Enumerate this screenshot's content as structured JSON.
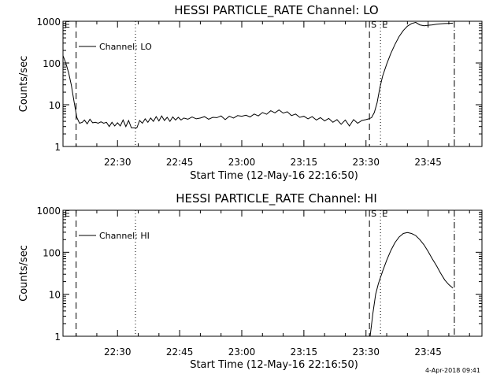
{
  "chart_data": [
    {
      "type": "line",
      "title": "HESSI PARTICLE_RATE Channel: LO",
      "xlabel": "Start Time (12-May-16 22:16:50)",
      "ylabel": "Counts/sec",
      "yscale": "log",
      "ylim": [
        1,
        1000
      ],
      "xlim": [
        "22:16:50",
        "23:58:00"
      ],
      "x_ticks": [
        "22:30",
        "22:45",
        "23:00",
        "23:15",
        "23:30",
        "23:45"
      ],
      "y_ticks": [
        "1",
        "10",
        "100",
        "1000"
      ],
      "legend": {
        "label": "Channel: LO",
        "placement": "top-left"
      },
      "markers": [
        {
          "label": "E",
          "time": "22:16:50",
          "style": "long-dash"
        },
        {
          "label": "",
          "time": "22:20:00",
          "style": "dash"
        },
        {
          "label": "",
          "time": "22:34:20",
          "style": "dot"
        },
        {
          "label": "S",
          "time": "23:30:50",
          "style": "dash"
        },
        {
          "label": "E",
          "time": "23:33:30",
          "style": "dot"
        },
        {
          "label": "",
          "time": "23:51:20",
          "style": "dash-dot"
        }
      ],
      "series": [
        {
          "time": [
            "22:16:50",
            "22:17:30",
            "22:18:10",
            "22:18:50",
            "22:19:30",
            "22:20:10",
            "22:20:50",
            "22:21:30",
            "22:22:00",
            "22:22:40",
            "22:23:20",
            "22:24:00",
            "22:24:40",
            "22:25:20",
            "22:26:00",
            "22:26:40",
            "22:27:20",
            "22:28:00",
            "22:28:40",
            "22:29:20",
            "22:30:00",
            "22:30:40",
            "22:31:20",
            "22:32:00",
            "22:32:40",
            "22:33:20",
            "22:34:00",
            "22:34:40",
            "22:35:20",
            "22:36:00",
            "22:36:40",
            "22:37:20",
            "22:38:00",
            "22:38:40",
            "22:39:20",
            "22:40:00",
            "22:40:40",
            "22:41:20",
            "22:42:00",
            "22:42:40",
            "22:43:20",
            "22:44:00",
            "22:44:40",
            "22:45:20",
            "22:46:00",
            "22:47:00",
            "22:48:00",
            "22:49:00",
            "22:50:00",
            "22:51:00",
            "22:52:00",
            "22:53:00",
            "22:54:00",
            "22:55:00",
            "22:56:00",
            "22:57:00",
            "22:58:00",
            "22:59:00",
            "23:00:00",
            "23:01:00",
            "23:02:00",
            "23:03:00",
            "23:04:00",
            "23:05:00",
            "23:06:00",
            "23:07:00",
            "23:08:00",
            "23:09:00",
            "23:10:00",
            "23:11:00",
            "23:12:00",
            "23:13:00",
            "23:14:00",
            "23:15:00",
            "23:16:00",
            "23:17:00",
            "23:18:00",
            "23:19:00",
            "23:20:00",
            "23:21:00",
            "23:22:00",
            "23:23:00",
            "23:24:00",
            "23:25:00",
            "23:26:00",
            "23:27:00",
            "23:28:00",
            "23:29:00",
            "23:30:00",
            "23:30:40",
            "23:31:20",
            "23:32:00",
            "23:32:40",
            "23:33:20",
            "23:34:00",
            "23:35:00",
            "23:36:00",
            "23:37:00",
            "23:38:00",
            "23:39:00",
            "23:40:00",
            "23:41:00",
            "23:42:00",
            "23:43:00",
            "23:44:00",
            "23:45:00",
            "23:46:00",
            "23:47:00",
            "23:48:00",
            "23:49:00",
            "23:50:00",
            "23:51:00"
          ],
          "values": [
            150,
            100,
            60,
            30,
            12,
            5,
            3.6,
            3.8,
            4.3,
            3.5,
            4.5,
            3.7,
            3.8,
            3.6,
            3.9,
            3.6,
            3.8,
            3.0,
            3.8,
            3.1,
            3.7,
            3.1,
            4.3,
            3.0,
            4.2,
            2.8,
            2.8,
            2.8,
            4.2,
            3.6,
            4.6,
            3.8,
            4.8,
            4.0,
            5.2,
            4.1,
            5.4,
            4.2,
            5.0,
            4.0,
            5.1,
            4.3,
            5.0,
            4.3,
            4.8,
            4.5,
            5.1,
            4.6,
            4.8,
            5.2,
            4.5,
            5.0,
            4.9,
            5.4,
            4.4,
            5.3,
            4.8,
            5.5,
            5.3,
            5.6,
            5.1,
            6.0,
            5.4,
            6.5,
            5.9,
            7.2,
            6.4,
            7.5,
            6.3,
            6.8,
            5.5,
            6.0,
            5.0,
            5.3,
            4.6,
            5.2,
            4.3,
            4.9,
            4.1,
            4.7,
            3.8,
            4.4,
            3.4,
            4.3,
            3.1,
            4.4,
            3.6,
            4.2,
            4.4,
            4.6,
            4.9,
            6.5,
            11,
            25,
            48,
            95,
            170,
            280,
            430,
            600,
            760,
            880,
            940,
            820,
            780,
            800,
            820,
            850,
            870,
            880,
            890,
            900
          ]
        }
      ]
    },
    {
      "type": "line",
      "title": "HESSI PARTICLE_RATE Channel: HI",
      "xlabel": "Start Time (12-May-16 22:16:50)",
      "ylabel": "Counts/sec",
      "yscale": "log",
      "ylim": [
        1,
        1000
      ],
      "xlim": [
        "22:16:50",
        "23:58:00"
      ],
      "x_ticks": [
        "22:30",
        "22:45",
        "23:00",
        "23:15",
        "23:30",
        "23:45"
      ],
      "y_ticks": [
        "1",
        "10",
        "100",
        "1000"
      ],
      "legend": {
        "label": "Channel: HI",
        "placement": "top-left"
      },
      "markers": [
        {
          "label": "E",
          "time": "22:16:50",
          "style": "long-dash"
        },
        {
          "label": "",
          "time": "22:20:00",
          "style": "dash"
        },
        {
          "label": "",
          "time": "22:34:20",
          "style": "dot"
        },
        {
          "label": "S",
          "time": "23:30:50",
          "style": "dash"
        },
        {
          "label": "E",
          "time": "23:33:30",
          "style": "dot"
        },
        {
          "label": "",
          "time": "23:51:20",
          "style": "dash-dot"
        }
      ],
      "series": [
        {
          "time": [
            "23:31:00",
            "23:31:40",
            "23:32:20",
            "23:33:00",
            "23:34:00",
            "23:35:00",
            "23:36:00",
            "23:37:00",
            "23:38:00",
            "23:39:00",
            "23:40:00",
            "23:41:00",
            "23:42:00",
            "23:43:00",
            "23:44:00",
            "23:45:00",
            "23:46:00",
            "23:47:00",
            "23:48:00",
            "23:49:00",
            "23:50:00",
            "23:51:00"
          ],
          "values": [
            1,
            3.5,
            10,
            18,
            35,
            65,
            110,
            170,
            230,
            280,
            295,
            280,
            250,
            200,
            150,
            105,
            70,
            48,
            32,
            22,
            17,
            14
          ]
        }
      ]
    }
  ],
  "footer": {
    "timestamp": "4-Apr-2018 09:41"
  }
}
